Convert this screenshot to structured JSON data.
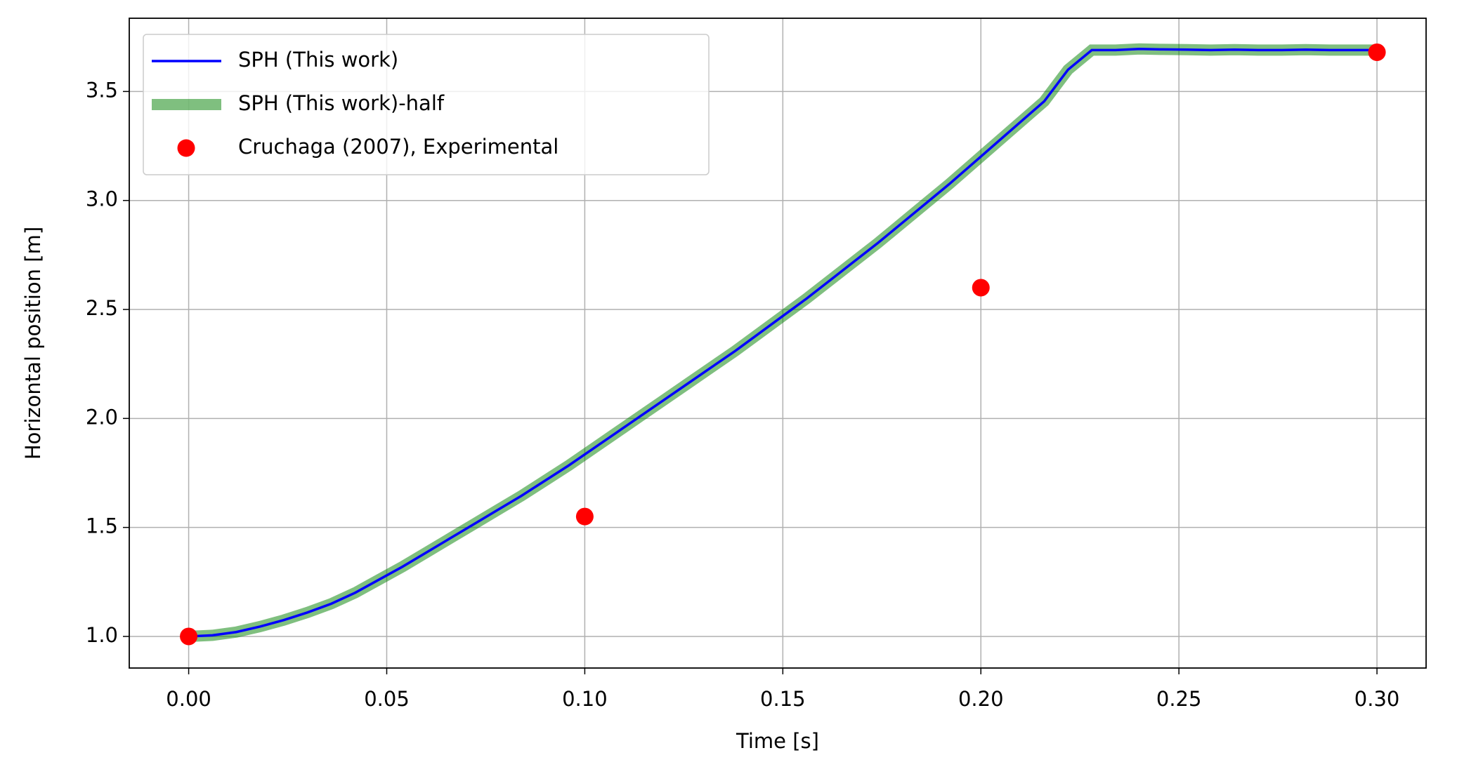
{
  "chart_data": {
    "type": "line",
    "xlabel": "Time [s]",
    "ylabel": "Horizontal position [m]",
    "x": [
      0,
      0.006,
      0.012,
      0.018,
      0.024,
      0.03,
      0.036,
      0.042,
      0.048,
      0.054,
      0.06,
      0.066,
      0.072,
      0.078,
      0.084,
      0.09,
      0.096,
      0.102,
      0.108,
      0.114,
      0.12,
      0.126,
      0.132,
      0.138,
      0.144,
      0.15,
      0.156,
      0.162,
      0.168,
      0.174,
      0.18,
      0.186,
      0.192,
      0.198,
      0.204,
      0.21,
      0.216,
      0.222,
      0.228,
      0.234,
      0.24,
      0.246,
      0.252,
      0.258,
      0.264,
      0.27,
      0.276,
      0.282,
      0.288,
      0.294,
      0.3
    ],
    "series": [
      {
        "name": "SPH (This work)",
        "mark": "line",
        "color": "#0000ff",
        "values": [
          1.0,
          1.005,
          1.02,
          1.045,
          1.075,
          1.11,
          1.15,
          1.2,
          1.26,
          1.32,
          1.385,
          1.45,
          1.515,
          1.58,
          1.645,
          1.715,
          1.785,
          1.86,
          1.935,
          2.01,
          2.085,
          2.16,
          2.235,
          2.31,
          2.39,
          2.47,
          2.55,
          2.635,
          2.72,
          2.805,
          2.895,
          2.985,
          3.075,
          3.17,
          3.265,
          3.36,
          3.455,
          3.6,
          3.69,
          3.69,
          3.695,
          3.693,
          3.692,
          3.69,
          3.692,
          3.69,
          3.69,
          3.692,
          3.69,
          3.69,
          3.69
        ]
      },
      {
        "name": "SPH (This work)-half",
        "mark": "line",
        "color": "#008000",
        "alpha": 0.5,
        "values": [
          1.0,
          1.005,
          1.02,
          1.045,
          1.075,
          1.11,
          1.15,
          1.2,
          1.26,
          1.32,
          1.385,
          1.45,
          1.515,
          1.58,
          1.645,
          1.715,
          1.785,
          1.86,
          1.935,
          2.01,
          2.085,
          2.16,
          2.235,
          2.31,
          2.39,
          2.47,
          2.55,
          2.635,
          2.72,
          2.805,
          2.895,
          2.985,
          3.075,
          3.17,
          3.265,
          3.36,
          3.455,
          3.6,
          3.69,
          3.69,
          3.695,
          3.693,
          3.692,
          3.69,
          3.692,
          3.69,
          3.69,
          3.692,
          3.69,
          3.69,
          3.69
        ]
      },
      {
        "name": "Cruchaga (2007), Experimental",
        "mark": "scatter",
        "color": "#ff0000",
        "x": [
          0,
          0.1,
          0.2,
          0.3
        ],
        "values": [
          1.0,
          1.55,
          2.6,
          3.68
        ]
      }
    ],
    "xlim": [
      -0.015,
      0.3124
    ],
    "ylim": [
      0.855,
      3.836
    ],
    "xticks": [
      {
        "value": 0,
        "label": "0.00"
      },
      0.05,
      {
        "value": 0.1,
        "label": "0.10"
      },
      0.15,
      {
        "value": 0.2,
        "label": "0.20"
      },
      0.25,
      {
        "value": 0.3,
        "label": "0.30"
      }
    ],
    "yticks": [
      {
        "value": 1,
        "label": "1.0"
      },
      1.5,
      {
        "value": 2,
        "label": "2.0"
      },
      2.5,
      {
        "value": 3,
        "label": "3.0"
      },
      3.5
    ],
    "grid": true,
    "legend": "upper left"
  }
}
